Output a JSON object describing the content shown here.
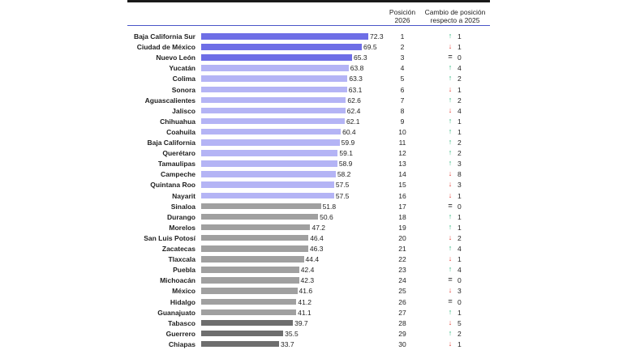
{
  "header": {
    "pos_label_1": "Posición",
    "pos_label_2": "2026",
    "chg_label_1": "Cambio de posición",
    "chg_label_2": "respecto a 2025"
  },
  "colors": {
    "top": "#6e6ee6",
    "mid": "#b4b4f5",
    "gray": "#a0a0a0",
    "dark": "#6e6e6e",
    "up": "#2fb47c",
    "down": "#e0463c",
    "same": "#444444"
  },
  "icons": {
    "up": "↑",
    "down": "↓",
    "same": "="
  },
  "chart_data": {
    "type": "table",
    "title": "",
    "xlim": [
      0,
      75
    ],
    "rows": [
      {
        "state": "Baja California Sur",
        "value": 72.3,
        "pos": 1,
        "dir": "up",
        "change": 1,
        "tier": "top"
      },
      {
        "state": "Ciudad de México",
        "value": 69.5,
        "pos": 2,
        "dir": "down",
        "change": 1,
        "tier": "top"
      },
      {
        "state": "Nuevo León",
        "value": 65.3,
        "pos": 3,
        "dir": "same",
        "change": 0,
        "tier": "top"
      },
      {
        "state": "Yucatán",
        "value": 63.8,
        "pos": 4,
        "dir": "up",
        "change": 4,
        "tier": "mid"
      },
      {
        "state": "Colima",
        "value": 63.3,
        "pos": 5,
        "dir": "up",
        "change": 2,
        "tier": "mid"
      },
      {
        "state": "Sonora",
        "value": 63.1,
        "pos": 6,
        "dir": "down",
        "change": 1,
        "tier": "mid"
      },
      {
        "state": "Aguascalientes",
        "value": 62.6,
        "pos": 7,
        "dir": "up",
        "change": 2,
        "tier": "mid"
      },
      {
        "state": "Jalisco",
        "value": 62.4,
        "pos": 8,
        "dir": "down",
        "change": 4,
        "tier": "mid"
      },
      {
        "state": "Chihuahua",
        "value": 62.1,
        "pos": 9,
        "dir": "up",
        "change": 1,
        "tier": "mid"
      },
      {
        "state": "Coahuila",
        "value": 60.4,
        "pos": 10,
        "dir": "up",
        "change": 1,
        "tier": "mid"
      },
      {
        "state": "Baja California",
        "value": 59.9,
        "pos": 11,
        "dir": "up",
        "change": 2,
        "tier": "mid"
      },
      {
        "state": "Querétaro",
        "value": 59.1,
        "pos": 12,
        "dir": "up",
        "change": 2,
        "tier": "mid"
      },
      {
        "state": "Tamaulipas",
        "value": 58.9,
        "pos": 13,
        "dir": "up",
        "change": 3,
        "tier": "mid"
      },
      {
        "state": "Campeche",
        "value": 58.2,
        "pos": 14,
        "dir": "down",
        "change": 8,
        "tier": "mid"
      },
      {
        "state": "Quintana Roo",
        "value": 57.5,
        "pos": 15,
        "dir": "down",
        "change": 3,
        "tier": "mid"
      },
      {
        "state": "Nayarit",
        "value": 57.5,
        "pos": 16,
        "dir": "down",
        "change": 1,
        "tier": "mid"
      },
      {
        "state": "Sinaloa",
        "value": 51.8,
        "pos": 17,
        "dir": "same",
        "change": 0,
        "tier": "gray"
      },
      {
        "state": "Durango",
        "value": 50.6,
        "pos": 18,
        "dir": "up",
        "change": 1,
        "tier": "gray"
      },
      {
        "state": "Morelos",
        "value": 47.2,
        "pos": 19,
        "dir": "up",
        "change": 1,
        "tier": "gray"
      },
      {
        "state": "San Luis Potosí",
        "value": 46.4,
        "pos": 20,
        "dir": "down",
        "change": 2,
        "tier": "gray"
      },
      {
        "state": "Zacatecas",
        "value": 46.3,
        "pos": 21,
        "dir": "up",
        "change": 4,
        "tier": "gray"
      },
      {
        "state": "Tlaxcala",
        "value": 44.4,
        "pos": 22,
        "dir": "down",
        "change": 1,
        "tier": "gray"
      },
      {
        "state": "Puebla",
        "value": 42.4,
        "pos": 23,
        "dir": "up",
        "change": 4,
        "tier": "gray"
      },
      {
        "state": "Michoacán",
        "value": 42.3,
        "pos": 24,
        "dir": "same",
        "change": 0,
        "tier": "gray"
      },
      {
        "state": "México",
        "value": 41.6,
        "pos": 25,
        "dir": "down",
        "change": 3,
        "tier": "gray"
      },
      {
        "state": "Hidalgo",
        "value": 41.2,
        "pos": 26,
        "dir": "same",
        "change": 0,
        "tier": "gray"
      },
      {
        "state": "Guanajuato",
        "value": 41.1,
        "pos": 27,
        "dir": "up",
        "change": 1,
        "tier": "gray"
      },
      {
        "state": "Tabasco",
        "value": 39.7,
        "pos": 28,
        "dir": "down",
        "change": 5,
        "tier": "dark"
      },
      {
        "state": "Guerrero",
        "value": 35.5,
        "pos": 29,
        "dir": "up",
        "change": 2,
        "tier": "dark"
      },
      {
        "state": "Chiapas",
        "value": 33.7,
        "pos": 30,
        "dir": "down",
        "change": 1,
        "tier": "dark"
      }
    ]
  }
}
